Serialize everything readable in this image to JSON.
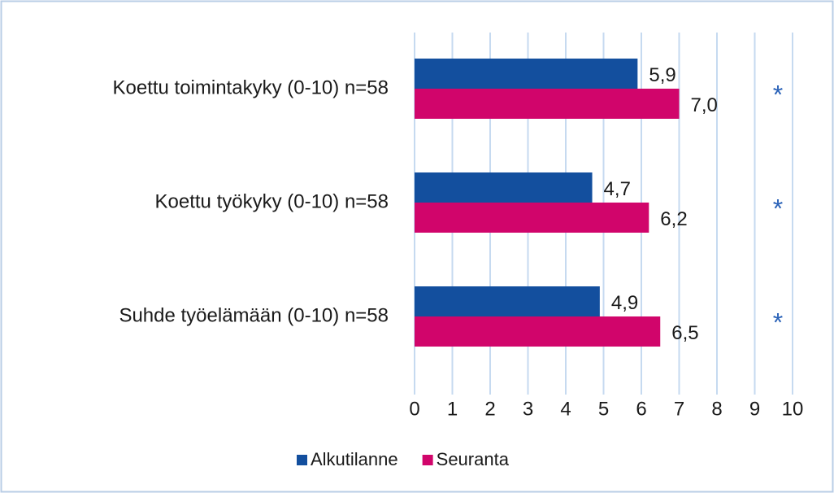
{
  "chart_data": {
    "type": "hbar",
    "categories": [
      "Koettu toimintakyky (0-10) n=58",
      "Koettu työkyky (0-10) n=58",
      "Suhde työelämään (0-10) n=58"
    ],
    "series": [
      {
        "name": "Alkutilanne",
        "color": "#134f9e",
        "values": [
          5.9,
          4.7,
          4.9
        ],
        "value_labels": [
          "5,9",
          "4,7",
          "4,9"
        ]
      },
      {
        "name": "Seuranta",
        "color": "#d1056b",
        "values": [
          7.0,
          6.2,
          6.5
        ],
        "value_labels": [
          "7,0",
          "6,2",
          "6,5"
        ]
      }
    ],
    "annotations": [
      "*",
      "*",
      "*"
    ],
    "xlim": [
      0,
      10
    ],
    "xticks": [
      0,
      1,
      2,
      3,
      4,
      5,
      6,
      7,
      8,
      9,
      10
    ],
    "grid": true,
    "legend": "bottom"
  }
}
